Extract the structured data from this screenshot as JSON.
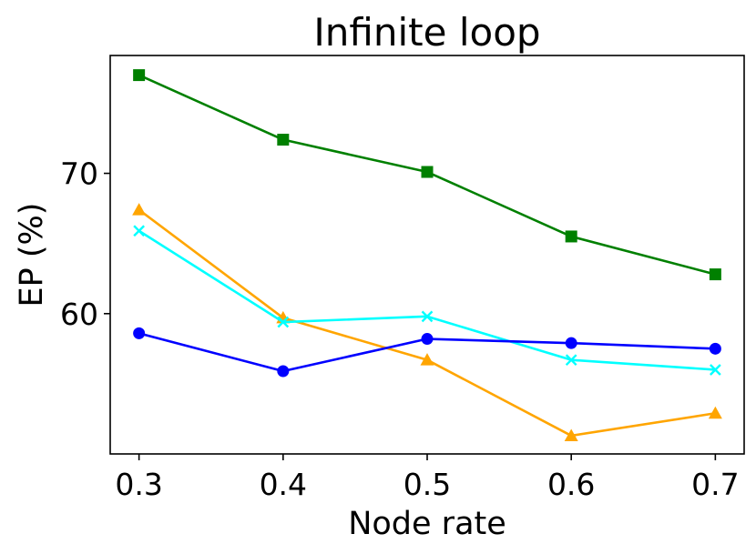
{
  "chart_data": {
    "type": "line",
    "title": "Infinite loop",
    "xlabel": "Node rate",
    "ylabel": "EP (%)",
    "x": [
      0.3,
      0.4,
      0.5,
      0.6,
      0.7
    ],
    "x_tick_labels": [
      "0.3",
      "0.4",
      "0.5",
      "0.6",
      "0.7"
    ],
    "xlim": [
      0.28,
      0.72
    ],
    "ylim": [
      50.0,
      78.4
    ],
    "y_ticks": [
      60,
      70
    ],
    "y_tick_labels": [
      "60",
      "70"
    ],
    "grid": false,
    "series": [
      {
        "name": "green",
        "color": "#008000",
        "marker": "square",
        "values": [
          77.0,
          72.4,
          70.1,
          65.5,
          62.8
        ]
      },
      {
        "name": "orange",
        "color": "#FFA500",
        "marker": "triangle",
        "values": [
          67.4,
          59.7,
          56.7,
          51.3,
          52.9
        ]
      },
      {
        "name": "cyan",
        "color": "#00FFFF",
        "marker": "x",
        "values": [
          65.9,
          59.4,
          59.8,
          56.7,
          56.0
        ]
      },
      {
        "name": "blue",
        "color": "#0000FF",
        "marker": "circle",
        "values": [
          58.6,
          55.9,
          58.2,
          57.9,
          57.5
        ]
      }
    ]
  }
}
